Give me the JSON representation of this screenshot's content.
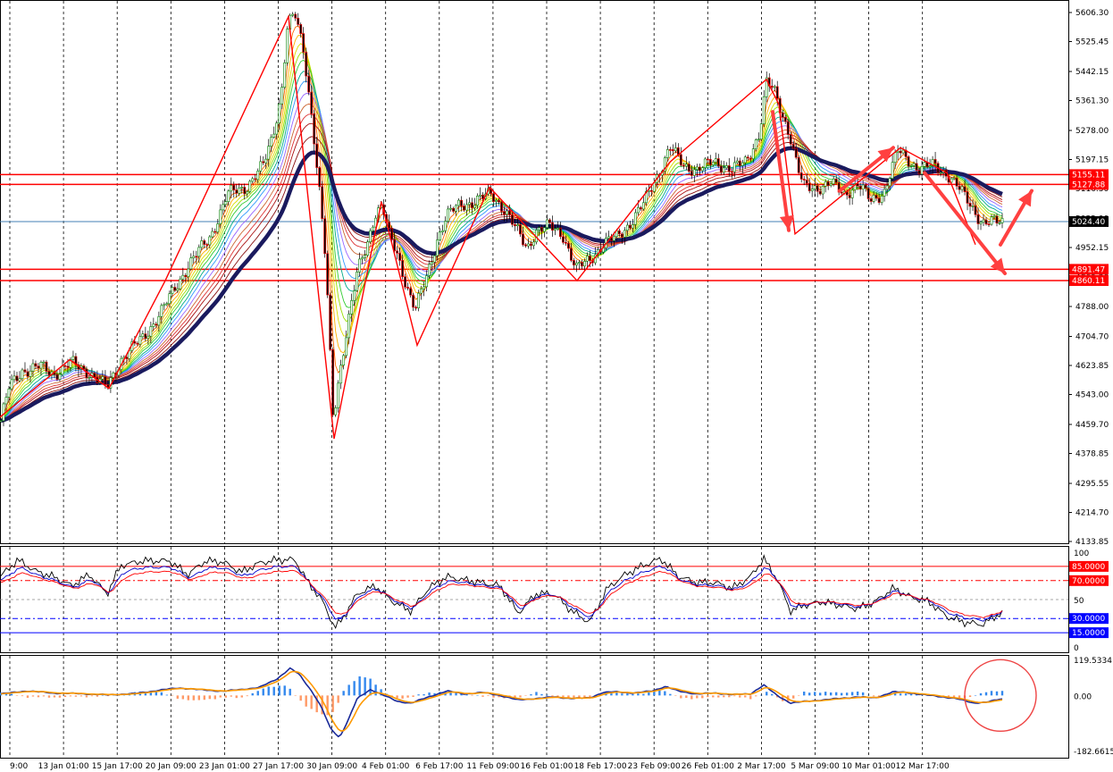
{
  "chart_data": [
    {
      "type": "candlestick",
      "panel": "main",
      "y_ticks": [
        "5606.30",
        "5525.45",
        "5442.15",
        "5361.30",
        "5278.00",
        "5197.15",
        "5116.30",
        "5033.00",
        "4952.15",
        "4869.30",
        "4788.00",
        "4704.70",
        "4623.85",
        "4543.00",
        "4459.70",
        "4378.85",
        "4295.55",
        "4214.70",
        "4133.85"
      ],
      "ylim": [
        4133.85,
        5606.3
      ],
      "x_ticks": [
        "9:00",
        "13 Jan 01:00",
        "15 Jan 17:00",
        "20 Jan 09:00",
        "23 Jan 01:00",
        "27 Jan 17:00",
        "30 Jan 09:00",
        "4 Feb 01:00",
        "6 Feb 17:00",
        "11 Feb 09:00",
        "16 Feb 01:00",
        "18 Feb 17:00",
        "23 Feb 09:00",
        "26 Feb 01:00",
        "2 Mar 17:00",
        "5 Mar 09:00",
        "10 Mar 01:00",
        "12 Mar 17:00"
      ],
      "price_path": [
        [
          0,
          4460
        ],
        [
          10,
          4560
        ],
        [
          25,
          4610
        ],
        [
          45,
          4620
        ],
        [
          60,
          4600
        ],
        [
          80,
          4630
        ],
        [
          100,
          4605
        ],
        [
          120,
          4560
        ],
        [
          135,
          4640
        ],
        [
          160,
          4700
        ],
        [
          185,
          4790
        ],
        [
          210,
          4900
        ],
        [
          235,
          4980
        ],
        [
          255,
          5100
        ],
        [
          275,
          5120
        ],
        [
          295,
          5180
        ],
        [
          305,
          5260
        ],
        [
          315,
          5380
        ],
        [
          322,
          5570
        ],
        [
          330,
          5600
        ],
        [
          340,
          5500
        ],
        [
          350,
          5300
        ],
        [
          358,
          5100
        ],
        [
          365,
          4900
        ],
        [
          373,
          4470
        ],
        [
          380,
          4600
        ],
        [
          390,
          4750
        ],
        [
          400,
          4880
        ],
        [
          410,
          4950
        ],
        [
          420,
          5050
        ],
        [
          428,
          5070
        ],
        [
          436,
          4980
        ],
        [
          445,
          4930
        ],
        [
          455,
          4850
        ],
        [
          465,
          4780
        ],
        [
          478,
          4870
        ],
        [
          490,
          4980
        ],
        [
          500,
          5040
        ],
        [
          515,
          5070
        ],
        [
          530,
          5080
        ],
        [
          550,
          5100
        ],
        [
          565,
          5060
        ],
        [
          578,
          5000
        ],
        [
          590,
          4950
        ],
        [
          600,
          5000
        ],
        [
          615,
          5010
        ],
        [
          630,
          4990
        ],
        [
          645,
          4890
        ],
        [
          660,
          4920
        ],
        [
          675,
          4960
        ],
        [
          690,
          4980
        ],
        [
          705,
          5020
        ],
        [
          720,
          5070
        ],
        [
          735,
          5150
        ],
        [
          750,
          5230
        ],
        [
          765,
          5180
        ],
        [
          780,
          5170
        ],
        [
          800,
          5190
        ],
        [
          820,
          5170
        ],
        [
          835,
          5190
        ],
        [
          850,
          5270
        ],
        [
          858,
          5410
        ],
        [
          866,
          5390
        ],
        [
          875,
          5330
        ],
        [
          885,
          5260
        ],
        [
          893,
          5170
        ],
        [
          900,
          5120
        ],
        [
          915,
          5120
        ],
        [
          930,
          5130
        ],
        [
          945,
          5100
        ],
        [
          960,
          5130
        ],
        [
          975,
          5080
        ],
        [
          990,
          5110
        ],
        [
          1005,
          5220
        ],
        [
          1015,
          5200
        ],
        [
          1030,
          5170
        ],
        [
          1045,
          5180
        ],
        [
          1060,
          5160
        ],
        [
          1075,
          5110
        ],
        [
          1090,
          5060
        ],
        [
          1100,
          5020
        ],
        [
          1110,
          5020
        ],
        [
          1120,
          5025
        ]
      ],
      "zigzag": [
        [
          0,
          4480
        ],
        [
          78,
          4640
        ],
        [
          122,
          4560
        ],
        [
          185,
          4860
        ],
        [
          323,
          5595
        ],
        [
          374,
          4420
        ],
        [
          427,
          5080
        ],
        [
          467,
          4680
        ],
        [
          548,
          5120
        ],
        [
          646,
          4860
        ],
        [
          750,
          5190
        ],
        [
          858,
          5420
        ],
        [
          872,
          5350
        ],
        [
          890,
          4990
        ],
        [
          1008,
          5230
        ],
        [
          1060,
          5160
        ],
        [
          1092,
          4960
        ]
      ],
      "arrows": [
        {
          "from": [
            865,
            5330
          ],
          "to": [
            883,
            5000
          ]
        },
        {
          "from": [
            940,
            5110
          ],
          "to": [
            1000,
            5230
          ]
        },
        {
          "from": [
            1035,
            5160
          ],
          "to": [
            1125,
            4880
          ]
        },
        {
          "from": [
            1120,
            4960
          ],
          "to": [
            1155,
            5110
          ]
        }
      ],
      "h_lines": [
        {
          "label": "5155.11",
          "value": 5155.11,
          "color": "#ff0000",
          "tag": true
        },
        {
          "label": "5127.88",
          "value": 5127.88,
          "color": "#ff0000",
          "tag": true
        },
        {
          "label": "4891.47",
          "value": 4891.47,
          "color": "#ff0000",
          "tag": true
        },
        {
          "label": "4860.11",
          "value": 4860.11,
          "color": "#ff0000",
          "tag": true
        },
        {
          "label": "5024.40",
          "value": 5024.4,
          "color": "#4682b4",
          "tag": true,
          "tag_color": "#000000"
        }
      ],
      "current_price": "5024.40",
      "colors": {
        "zigzag": "#ff0000",
        "arrow": "#ff4040",
        "ma_slow": "#1a1a5e",
        "bull": "#008000",
        "bear": "#ff0000"
      }
    },
    {
      "type": "line",
      "panel": "oscillator",
      "y_ticks": [
        "100",
        "50",
        "0"
      ],
      "ylim": [
        0,
        100
      ],
      "levels": [
        {
          "label": "85.0000",
          "value": 85,
          "color": "#ff0000",
          "tag": true
        },
        {
          "label": "70.0000",
          "value": 70,
          "color": "#ff0000",
          "tag": true
        },
        {
          "label": "30.0000",
          "value": 30,
          "color": "#0000ff",
          "tag": true
        },
        {
          "label": "15.0000",
          "value": 15,
          "color": "#0000ff",
          "tag": true
        }
      ],
      "series_path": [
        [
          0,
          70
        ],
        [
          20,
          85
        ],
        [
          40,
          75
        ],
        [
          60,
          70
        ],
        [
          80,
          62
        ],
        [
          100,
          72
        ],
        [
          120,
          55
        ],
        [
          135,
          80
        ],
        [
          160,
          84
        ],
        [
          190,
          84
        ],
        [
          210,
          72
        ],
        [
          230,
          84
        ],
        [
          250,
          83
        ],
        [
          270,
          74
        ],
        [
          290,
          82
        ],
        [
          310,
          85
        ],
        [
          330,
          85
        ],
        [
          345,
          65
        ],
        [
          360,
          50
        ],
        [
          375,
          25
        ],
        [
          385,
          35
        ],
        [
          400,
          55
        ],
        [
          420,
          62
        ],
        [
          440,
          48
        ],
        [
          460,
          40
        ],
        [
          480,
          60
        ],
        [
          500,
          70
        ],
        [
          530,
          66
        ],
        [
          560,
          62
        ],
        [
          580,
          38
        ],
        [
          600,
          55
        ],
        [
          620,
          55
        ],
        [
          640,
          40
        ],
        [
          660,
          30
        ],
        [
          680,
          60
        ],
        [
          700,
          72
        ],
        [
          720,
          80
        ],
        [
          740,
          86
        ],
        [
          760,
          70
        ],
        [
          780,
          65
        ],
        [
          800,
          65
        ],
        [
          820,
          60
        ],
        [
          840,
          70
        ],
        [
          855,
          86
        ],
        [
          870,
          68
        ],
        [
          885,
          40
        ],
        [
          900,
          45
        ],
        [
          920,
          48
        ],
        [
          940,
          45
        ],
        [
          960,
          42
        ],
        [
          980,
          48
        ],
        [
          1000,
          60
        ],
        [
          1020,
          52
        ],
        [
          1040,
          48
        ],
        [
          1060,
          35
        ],
        [
          1080,
          30
        ],
        [
          1100,
          28
        ],
        [
          1120,
          38
        ]
      ]
    },
    {
      "type": "bar",
      "panel": "histogram",
      "y_ticks": [
        "119.5334",
        "0.00",
        "-182.6615"
      ],
      "ylim": [
        -182.6615,
        119.5334
      ],
      "series_path": [
        [
          0,
          5
        ],
        [
          30,
          15
        ],
        [
          60,
          8
        ],
        [
          90,
          6
        ],
        [
          120,
          2
        ],
        [
          150,
          6
        ],
        [
          180,
          18
        ],
        [
          200,
          25
        ],
        [
          220,
          20
        ],
        [
          250,
          14
        ],
        [
          270,
          20
        ],
        [
          290,
          26
        ],
        [
          310,
          55
        ],
        [
          325,
          90
        ],
        [
          335,
          70
        ],
        [
          350,
          10
        ],
        [
          360,
          -40
        ],
        [
          370,
          -110
        ],
        [
          380,
          -140
        ],
        [
          390,
          -80
        ],
        [
          400,
          -10
        ],
        [
          415,
          20
        ],
        [
          430,
          0
        ],
        [
          445,
          -20
        ],
        [
          460,
          -25
        ],
        [
          480,
          -5
        ],
        [
          500,
          15
        ],
        [
          520,
          5
        ],
        [
          540,
          10
        ],
        [
          560,
          0
        ],
        [
          580,
          -15
        ],
        [
          600,
          -10
        ],
        [
          620,
          -5
        ],
        [
          640,
          -10
        ],
        [
          660,
          -8
        ],
        [
          675,
          10
        ],
        [
          690,
          12
        ],
        [
          710,
          8
        ],
        [
          730,
          15
        ],
        [
          745,
          30
        ],
        [
          760,
          14
        ],
        [
          780,
          5
        ],
        [
          800,
          8
        ],
        [
          820,
          3
        ],
        [
          840,
          5
        ],
        [
          855,
          35
        ],
        [
          870,
          0
        ],
        [
          885,
          -25
        ],
        [
          900,
          -20
        ],
        [
          920,
          -15
        ],
        [
          940,
          -10
        ],
        [
          960,
          -5
        ],
        [
          980,
          -8
        ],
        [
          1000,
          12
        ],
        [
          1015,
          10
        ],
        [
          1030,
          4
        ],
        [
          1050,
          -3
        ],
        [
          1070,
          -10
        ],
        [
          1090,
          -25
        ],
        [
          1105,
          -22
        ],
        [
          1120,
          -12
        ]
      ],
      "hist": [
        [
          0,
          10
        ],
        [
          30,
          -5
        ],
        [
          60,
          -6
        ],
        [
          90,
          -4
        ],
        [
          120,
          -2
        ],
        [
          150,
          10
        ],
        [
          175,
          14
        ],
        [
          200,
          -10
        ],
        [
          220,
          -18
        ],
        [
          250,
          -6
        ],
        [
          270,
          -8
        ],
        [
          300,
          28
        ],
        [
          320,
          35
        ],
        [
          340,
          -30
        ],
        [
          355,
          -55
        ],
        [
          365,
          -70
        ],
        [
          375,
          -50
        ],
        [
          385,
          20
        ],
        [
          395,
          45
        ],
        [
          405,
          65
        ],
        [
          415,
          55
        ],
        [
          430,
          10
        ],
        [
          440,
          -10
        ],
        [
          455,
          -8
        ],
        [
          480,
          8
        ],
        [
          500,
          14
        ],
        [
          520,
          6
        ],
        [
          540,
          -4
        ],
        [
          560,
          -6
        ],
        [
          580,
          -10
        ],
        [
          600,
          12
        ],
        [
          620,
          -8
        ],
        [
          640,
          -10
        ],
        [
          660,
          -6
        ],
        [
          680,
          10
        ],
        [
          700,
          8
        ],
        [
          720,
          4
        ],
        [
          740,
          20
        ],
        [
          760,
          -8
        ],
        [
          780,
          -10
        ],
        [
          800,
          -6
        ],
        [
          820,
          -4
        ],
        [
          840,
          -10
        ],
        [
          860,
          12
        ],
        [
          880,
          -25
        ],
        [
          900,
          10
        ],
        [
          920,
          12
        ],
        [
          940,
          8
        ],
        [
          960,
          14
        ],
        [
          980,
          -6
        ],
        [
          1000,
          6
        ],
        [
          1020,
          6
        ],
        [
          1040,
          4
        ],
        [
          1060,
          -8
        ],
        [
          1080,
          -10
        ],
        [
          1100,
          10
        ],
        [
          1115,
          14
        ]
      ],
      "circle_annotation": {
        "x": 1120,
        "value": 0
      }
    }
  ]
}
